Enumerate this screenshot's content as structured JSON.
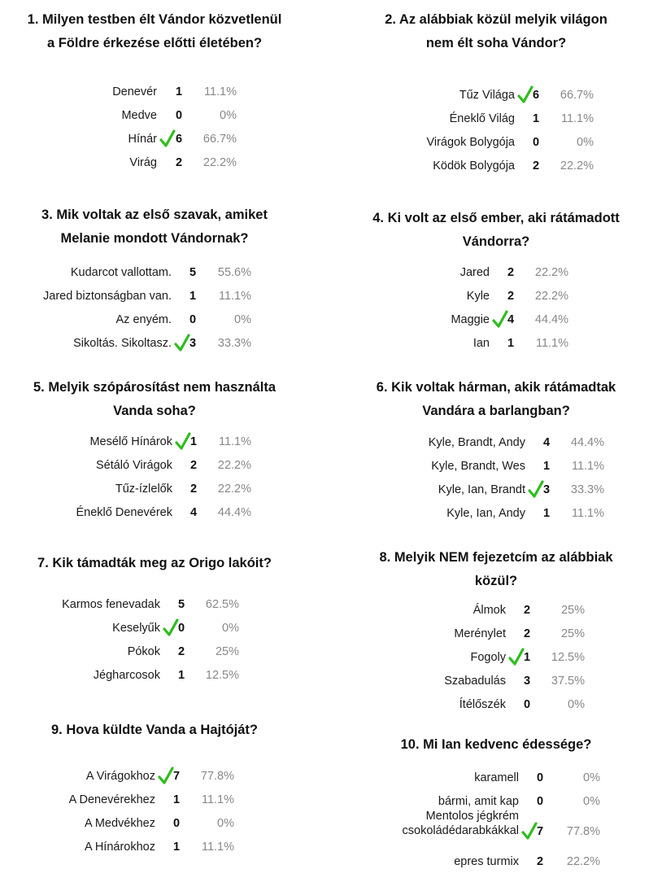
{
  "questions": [
    {
      "title": "1. Milyen testben élt Vándor közvetlenül\na Földre érkezése előtti életében?",
      "options": [
        {
          "label": "Denevér",
          "count": "1",
          "percent": "11.1%",
          "correct": false
        },
        {
          "label": "Medve",
          "count": "0",
          "percent": "0%",
          "correct": false
        },
        {
          "label": "Hínár",
          "count": "6",
          "percent": "66.7%",
          "correct": true
        },
        {
          "label": "Virág",
          "count": "2",
          "percent": "22.2%",
          "correct": false
        }
      ]
    },
    {
      "title": "2. Az alábbiak közül melyik világon\nnem élt soha Vándor?",
      "options": [
        {
          "label": "Tűz Világa",
          "count": "6",
          "percent": "66.7%",
          "correct": true
        },
        {
          "label": "Éneklő Világ",
          "count": "1",
          "percent": "11.1%",
          "correct": false
        },
        {
          "label": "Virágok Bolygója",
          "count": "0",
          "percent": "0%",
          "correct": false
        },
        {
          "label": "Ködök Bolygója",
          "count": "2",
          "percent": "22.2%",
          "correct": false
        }
      ]
    },
    {
      "title": "3. Mik voltak az első szavak, amiket\nMelanie mondott Vándornak?",
      "options": [
        {
          "label": "Kudarcot vallottam.",
          "count": "5",
          "percent": "55.6%",
          "correct": false
        },
        {
          "label": "Jared biztonságban van.",
          "count": "1",
          "percent": "11.1%",
          "correct": false
        },
        {
          "label": "Az enyém.",
          "count": "0",
          "percent": "0%",
          "correct": false
        },
        {
          "label": "Sikoltás. Sikoltasz.",
          "count": "3",
          "percent": "33.3%",
          "correct": true
        }
      ]
    },
    {
      "title": "4. Ki volt az első ember, aki rátámadott\nVándorra?",
      "options": [
        {
          "label": "Jared",
          "count": "2",
          "percent": "22.2%",
          "correct": false
        },
        {
          "label": "Kyle",
          "count": "2",
          "percent": "22.2%",
          "correct": false
        },
        {
          "label": "Maggie",
          "count": "4",
          "percent": "44.4%",
          "correct": true
        },
        {
          "label": "Ian",
          "count": "1",
          "percent": "11.1%",
          "correct": false
        }
      ]
    },
    {
      "title": "5. Melyik szópárosítást nem használta\nVanda soha?",
      "options": [
        {
          "label": "Mesélő Hínárok",
          "count": "1",
          "percent": "11.1%",
          "correct": true
        },
        {
          "label": "Sétáló Virágok",
          "count": "2",
          "percent": "22.2%",
          "correct": false
        },
        {
          "label": "Tűz-ízlelők",
          "count": "2",
          "percent": "22.2%",
          "correct": false
        },
        {
          "label": "Éneklő Denevérek",
          "count": "4",
          "percent": "44.4%",
          "correct": false
        }
      ]
    },
    {
      "title": "6. Kik voltak hárman, akik rátámadtak\nVandára a barlangban?",
      "options": [
        {
          "label": "Kyle, Brandt, Andy",
          "count": "4",
          "percent": "44.4%",
          "correct": false
        },
        {
          "label": "Kyle, Brandt, Wes",
          "count": "1",
          "percent": "11.1%",
          "correct": false
        },
        {
          "label": "Kyle, Ian, Brandt",
          "count": "3",
          "percent": "33.3%",
          "correct": true
        },
        {
          "label": "Kyle, Ian, Andy",
          "count": "1",
          "percent": "11.1%",
          "correct": false
        }
      ]
    },
    {
      "title": "7. Kik támadták meg az Origo lakóit?",
      "options": [
        {
          "label": "Karmos fenevadak",
          "count": "5",
          "percent": "62.5%",
          "correct": false
        },
        {
          "label": "Keselyűk",
          "count": "0",
          "percent": "0%",
          "correct": true
        },
        {
          "label": "Pókok",
          "count": "2",
          "percent": "25%",
          "correct": false
        },
        {
          "label": "Jégharcosok",
          "count": "1",
          "percent": "12.5%",
          "correct": false
        }
      ]
    },
    {
      "title": "8. Melyik NEM fejezetcím az alábbiak\nközül?",
      "options": [
        {
          "label": "Álmok",
          "count": "2",
          "percent": "25%",
          "correct": false
        },
        {
          "label": "Merénylet",
          "count": "2",
          "percent": "25%",
          "correct": false
        },
        {
          "label": "Fogoly",
          "count": "1",
          "percent": "12.5%",
          "correct": true
        },
        {
          "label": "Szabadulás",
          "count": "3",
          "percent": "37.5%",
          "correct": false
        },
        {
          "label": "Ítélőszék",
          "count": "0",
          "percent": "0%",
          "correct": false
        }
      ]
    },
    {
      "title": "9. Hova küldte Vanda a Hajtóját?",
      "options": [
        {
          "label": "A Virágokhoz",
          "count": "7",
          "percent": "77.8%",
          "correct": true
        },
        {
          "label": "A Denevérekhez",
          "count": "1",
          "percent": "11.1%",
          "correct": false
        },
        {
          "label": "A Medvékhez",
          "count": "0",
          "percent": "0%",
          "correct": false
        },
        {
          "label": "A Hínárokhoz",
          "count": "1",
          "percent": "11.1%",
          "correct": false
        }
      ]
    },
    {
      "title": "10. Mi Ian kedvenc édessége?",
      "options": [
        {
          "label": "karamell",
          "count": "0",
          "percent": "0%",
          "correct": false
        },
        {
          "label": "bármi, amit kap",
          "count": "0",
          "percent": "0%",
          "correct": false
        },
        {
          "label": "Mentolos jégkrém\ncsokoládédarabkákkal",
          "count": "7",
          "percent": "77.8%",
          "correct": true
        },
        {
          "label": "epres turmix",
          "count": "2",
          "percent": "22.2%",
          "correct": false
        }
      ]
    }
  ],
  "colors": {
    "check": "#2ebd1e",
    "percent": "#888888",
    "text": "#111111"
  },
  "icons": {
    "correct": "checkmark-icon"
  }
}
